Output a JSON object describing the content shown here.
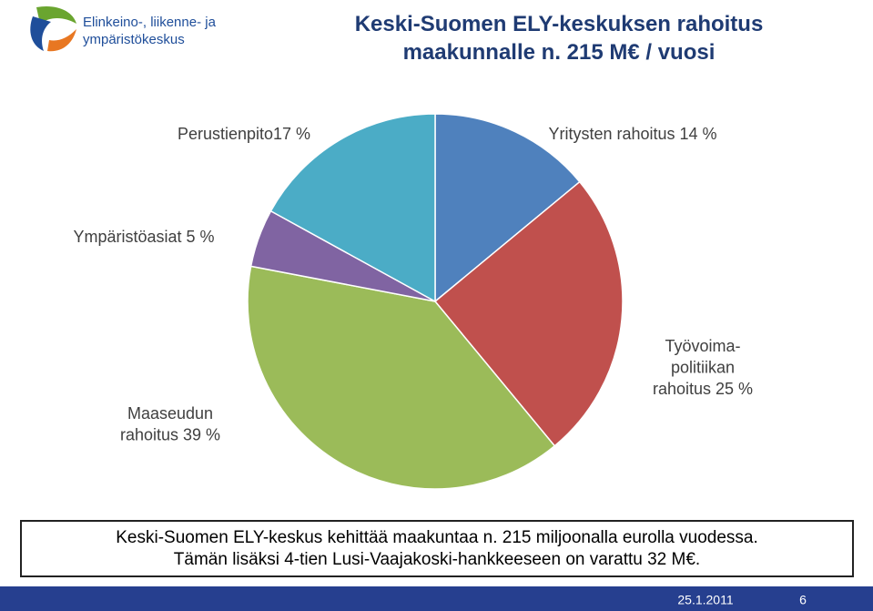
{
  "logo": {
    "lines": [
      "Elinkeino-, liikenne- ja",
      "ympäristökeskus"
    ]
  },
  "chart_data": {
    "type": "pie",
    "title": "Keski-Suomen ELY-keskuksen rahoitus\nmaakunnalle n. 215 M€ / vuosi",
    "categories": [
      "Yritysten rahoitus 14 %",
      "Työvoima-\npolitiikan\nrahoitus 25 %",
      "Maaseudun\nrahoitus 39 %",
      "Ympäristöasiat 5 %",
      "Perustienpito17 %"
    ],
    "values": [
      14,
      25,
      39,
      5,
      17
    ],
    "colors": [
      "#4f81bd",
      "#c0504d",
      "#9bbb59",
      "#8064a2",
      "#4bacc6"
    ]
  },
  "note": {
    "lines": [
      "Keski-Suomen ELY-keskus kehittää maakuntaa n. 215 miljoonalla eurolla vuodessa.",
      "Tämän lisäksi 4-tien Lusi-Vaajakoski-hankkeeseen on varattu 32 M€."
    ]
  },
  "footer": {
    "date": "25.1.2011",
    "page": "6"
  }
}
